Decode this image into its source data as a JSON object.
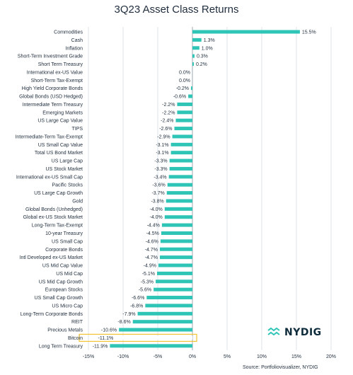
{
  "chart_data": {
    "type": "bar",
    "orientation": "horizontal",
    "title": "3Q23 Asset Class Returns",
    "categories": [
      "Commodities",
      "Cash",
      "Inflation",
      "Short-Term Investment Grade",
      "Short Term Treasury",
      "International ex-US Value",
      "Short-Term Tax-Exempt",
      "High Yield Corporate Bonds",
      "Global Bonds (USD Hedged)",
      "Intermediate Term Treasury",
      "Emerging Markets",
      "US Large Cap Value",
      "TIPS",
      "Intermediate-Term Tax-Exempt",
      "US Small Cap Value",
      "Total US Bond Market",
      "US Large Cap",
      "US Stock Market",
      "International ex-US Small Cap",
      "Pacific Stocks",
      "US Large Cap Growth",
      "Gold",
      "Global Bonds (Unhedged)",
      "Global ex-US Stock Market",
      "Long-Term Tax-Exempt",
      "10-year Treasury",
      "US Small Cap",
      "Corporate Bonds",
      "Intl Developed ex-US Market",
      "US Mid Cap Value",
      "US Mid Cap",
      "US Mid Cap Growth",
      "European Stocks",
      "US Small Cap Growth",
      "US Micro Cap",
      "Long-Term Corporate Bonds",
      "REIT",
      "Precious Metals",
      "Bitcoin",
      "Long Term Treasury"
    ],
    "values": [
      15.5,
      1.3,
      1.0,
      0.3,
      0.2,
      0.0,
      0.0,
      -0.2,
      -0.6,
      -2.2,
      -2.2,
      -2.4,
      -2.6,
      -2.9,
      -3.1,
      -3.1,
      -3.3,
      -3.3,
      -3.4,
      -3.6,
      -3.7,
      -3.8,
      -4.0,
      -4.0,
      -4.4,
      -4.5,
      -4.6,
      -4.7,
      -4.7,
      -4.9,
      -5.1,
      -5.3,
      -5.6,
      -6.6,
      -6.8,
      -7.9,
      -8.6,
      -10.6,
      -11.1,
      -11.9
    ],
    "value_labels": [
      "15.5%",
      "1.3%",
      "1.0%",
      "0.3%",
      "0.2%",
      "0.0%",
      "0.0%",
      "-0.2%",
      "-0.6%",
      "-2.2%",
      "-2.2%",
      "-2.4%",
      "-2.6%",
      "-2.9%",
      "-3.1%",
      "-3.1%",
      "-3.3%",
      "-3.3%",
      "-3.4%",
      "-3.6%",
      "-3.7%",
      "-3.8%",
      "-4.0%",
      "-4.0%",
      "-4.4%",
      "-4.5%",
      "-4.6%",
      "-4.7%",
      "-4.7%",
      "-4.9%",
      "-5.1%",
      "-5.3%",
      "-5.6%",
      "-6.6%",
      "-6.8%",
      "-7.9%",
      "-8.6%",
      "-10.6%",
      "-11.1%",
      "-11.9%"
    ],
    "highlighted_category": "Bitcoin",
    "xlim": [
      -15,
      20
    ],
    "x_ticks": [
      -15,
      -10,
      -5,
      0,
      5,
      10,
      15,
      20
    ],
    "x_tick_labels": [
      "-15%",
      "-10%",
      "-5%",
      "0%",
      "5%",
      "10%",
      "15%",
      "20%"
    ],
    "grid": "vertical",
    "bar_color": "#2ec4b6",
    "highlight_color": "#f2c230",
    "source": "Source: Portfoliovisualizer, NYDIG"
  },
  "logo": {
    "text": "NYDIG",
    "color": "#0d2b3a",
    "accent": "#2ec4b6"
  }
}
